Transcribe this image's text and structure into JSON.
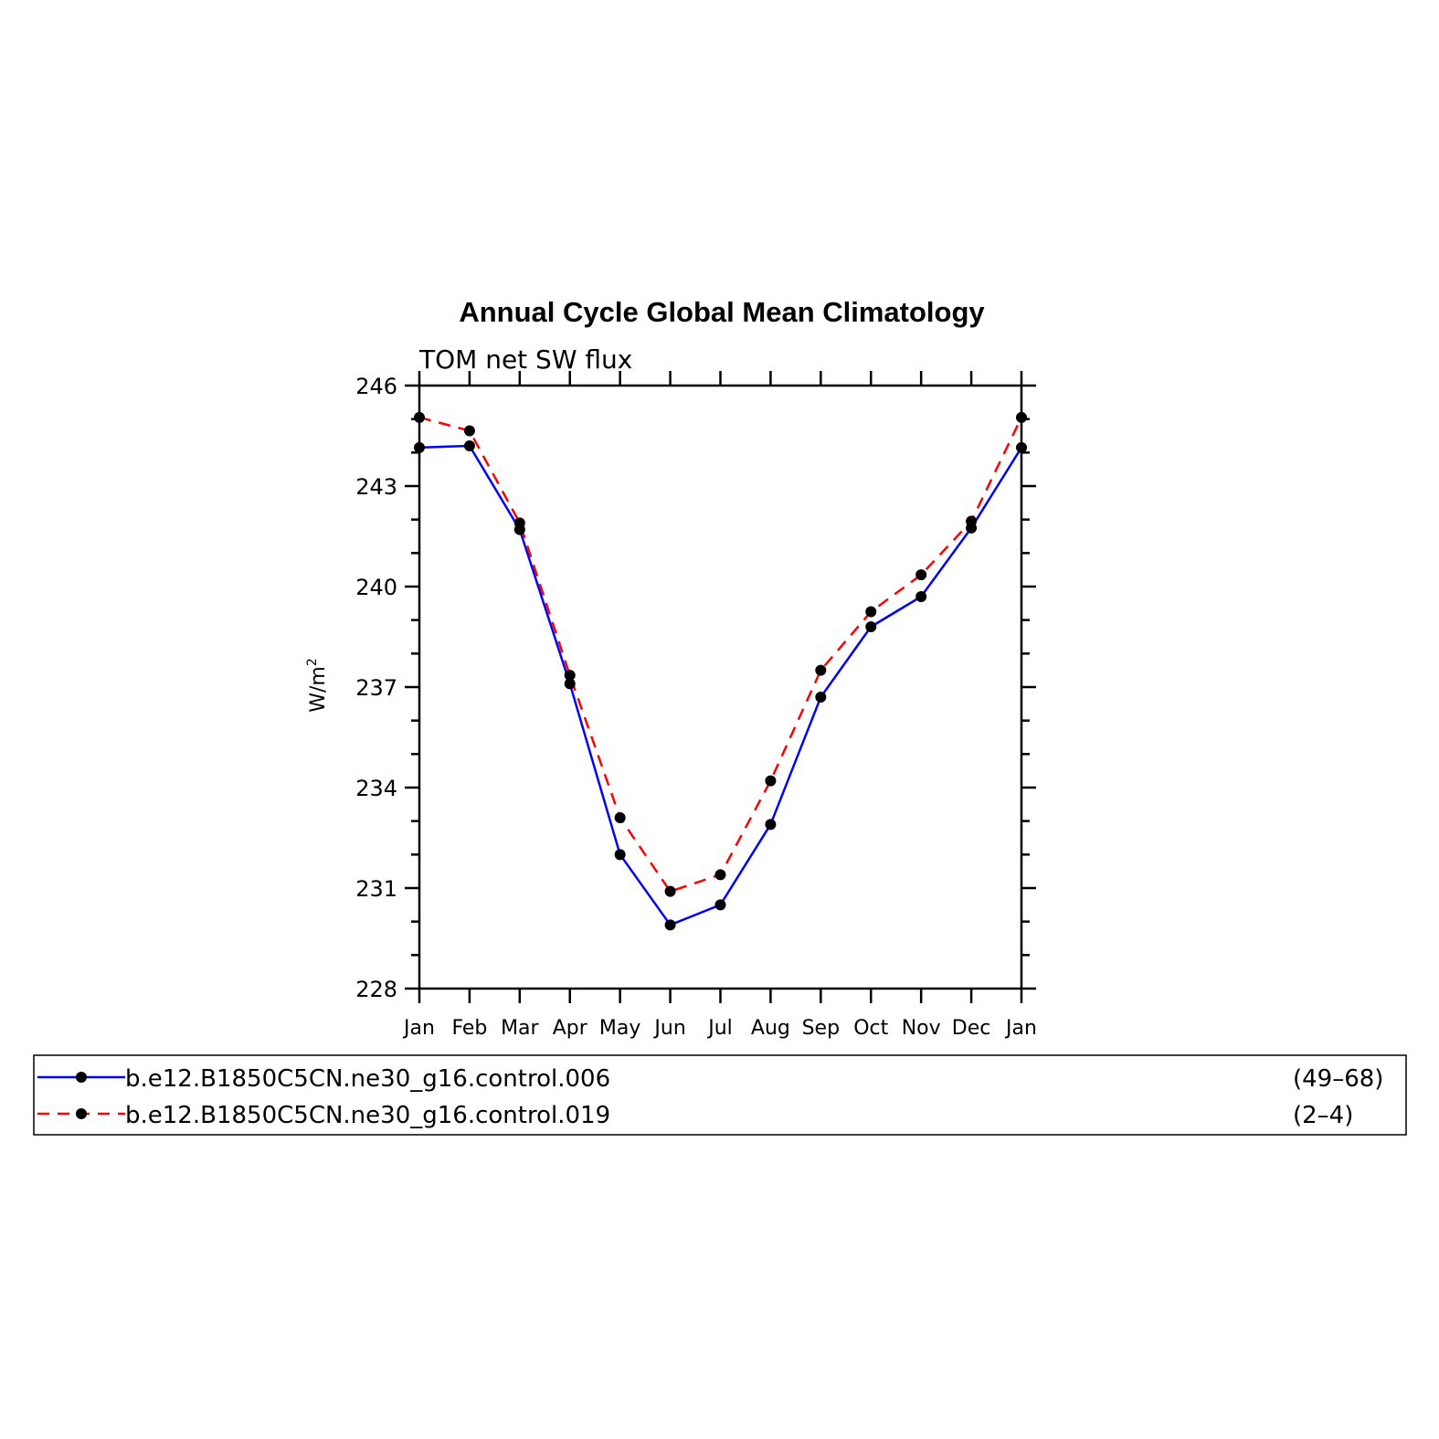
{
  "chart_data": {
    "type": "line",
    "title": "Annual Cycle Global Mean Climatology",
    "subtitle": "TOM net SW flux",
    "ylabel_base": "W/m",
    "ylabel_sup": "2",
    "categories": [
      "Jan",
      "Feb",
      "Mar",
      "Apr",
      "May",
      "Jun",
      "Jul",
      "Aug",
      "Sep",
      "Oct",
      "Nov",
      "Dec",
      "Jan"
    ],
    "ylim": [
      228,
      246
    ],
    "yticks": [
      228,
      231,
      234,
      237,
      240,
      243,
      246
    ],
    "series": [
      {
        "name": "b.e12.B1850C5CN.ne30_g16.control.006",
        "years": "(49–68)",
        "color": "#0000ff",
        "dash": "solid",
        "values": [
          244.15,
          244.2,
          241.7,
          237.1,
          232.0,
          229.9,
          230.5,
          232.9,
          236.7,
          238.8,
          239.7,
          241.75,
          244.15
        ]
      },
      {
        "name": "b.e12.B1850C5CN.ne30_g16.control.019",
        "years": "(2–4)",
        "color": "#ff0000",
        "dash": "dashed",
        "values": [
          245.05,
          244.65,
          241.9,
          237.35,
          233.1,
          230.9,
          231.4,
          234.2,
          237.5,
          239.25,
          240.35,
          241.95,
          245.05
        ]
      }
    ],
    "legend_position": "bottom",
    "grid": false
  }
}
